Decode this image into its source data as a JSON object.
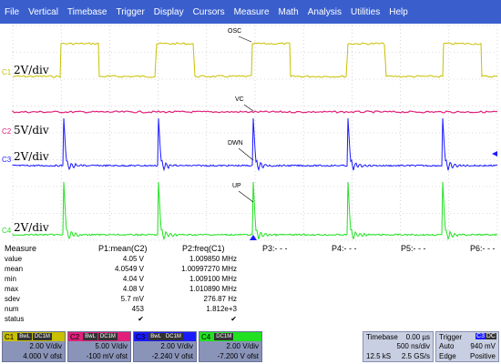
{
  "menu": [
    "File",
    "Vertical",
    "Timebase",
    "Trigger",
    "Display",
    "Cursors",
    "Measure",
    "Math",
    "Analysis",
    "Utilities",
    "Help"
  ],
  "colors": {
    "menubar": "#3a5fcd",
    "c1": "#c8c000",
    "c2": "#e0207a",
    "c3": "#1a1aff",
    "c4": "#22e022",
    "grid": "#b8b8b8"
  },
  "scope": {
    "channel_markers": {
      "c1": "C1",
      "c2": "C2",
      "c3": "C3",
      "c4": "C4"
    },
    "vdiv": {
      "c1": "2V/div",
      "c2": "5V/div",
      "c3": "2V/div",
      "c4": "2V/div"
    },
    "trace_labels": {
      "osc": "OSC",
      "vc": "VC",
      "dwn": "DWN",
      "up": "UP"
    }
  },
  "measure": {
    "title": "Measure",
    "columns": [
      "P1:mean(C2)",
      "P2:freq(C1)",
      "P3:- - -",
      "P4:- - -",
      "P5:- - -",
      "P6:- - -"
    ],
    "rows": [
      {
        "label": "value",
        "p1": "4.05 V",
        "p2": "1.009850 MHz"
      },
      {
        "label": "mean",
        "p1": "4.0549 V",
        "p2": "1.00997270 MHz"
      },
      {
        "label": "min",
        "p1": "4.04 V",
        "p2": "1.009100 MHz"
      },
      {
        "label": "max",
        "p1": "4.08 V",
        "p2": "1.010890 MHz"
      },
      {
        "label": "sdev",
        "p1": "5.7 mV",
        "p2": "276.87 Hz"
      },
      {
        "label": "num",
        "p1": "453",
        "p2": "1.812e+3"
      },
      {
        "label": "status",
        "p1": "✔",
        "p2": "✔"
      }
    ]
  },
  "channels": [
    {
      "name": "C1",
      "tags": [
        "BwL",
        "DC1M"
      ],
      "vdiv": "2.00 V/div",
      "offset": "4.000 V ofst",
      "color": "#c8c000"
    },
    {
      "name": "C2",
      "tags": [
        "BwL",
        "DC1M"
      ],
      "vdiv": "5.00 V/div",
      "offset": "-100 mV ofst",
      "color": "#e0207a"
    },
    {
      "name": "C3",
      "tags": [
        "BwL",
        "DC1M"
      ],
      "vdiv": "2.00 V/div",
      "offset": "-2.240 V ofst",
      "color": "#1a1aff"
    },
    {
      "name": "C4",
      "tags": [
        "DC1M"
      ],
      "vdiv": "2.00 V/div",
      "offset": "-7.200 V ofst",
      "color": "#22e022"
    }
  ],
  "timebase": {
    "label": "Timebase",
    "delay": "0.00 µs",
    "tdiv": "500 ns/div",
    "samples": "12.5 kS",
    "rate": "2.5 GS/s"
  },
  "trigger": {
    "label": "Trigger",
    "source": "C3",
    "coupling": "DC",
    "mode": "Auto",
    "level": "940 mV",
    "type": "Edge",
    "slope": "Positive"
  }
}
